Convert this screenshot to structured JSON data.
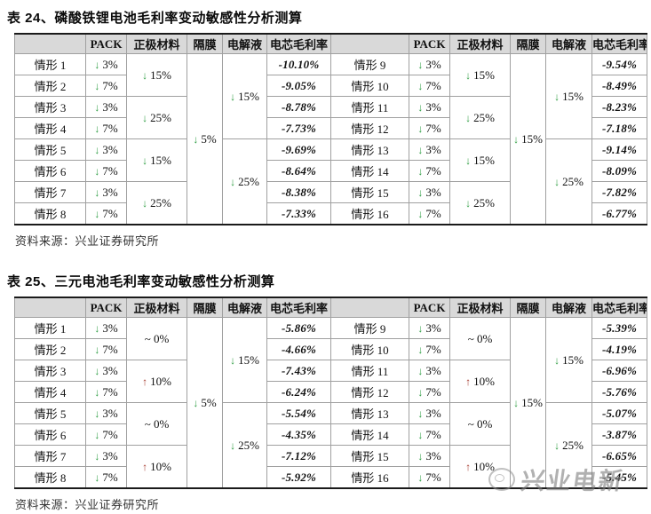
{
  "colors": {
    "arrow_down": "#2f9e44",
    "arrow_up": "#a63a2e",
    "header_bg": "#d9d9d9",
    "watermark": "#8c8c8c"
  },
  "watermark": {
    "text": "兴业电新"
  },
  "tables": [
    {
      "title": "表 24、磷酸铁锂电池毛利率变动敏感性分析测算",
      "source": "资料来源：兴业证券研究所",
      "columns": [
        "",
        "PACK",
        "正极材料",
        "隔膜",
        "电解液",
        "电芯毛利率"
      ],
      "halves": [
        {
          "rows": [
            {
              "label": "情形 1",
              "pack": {
                "dir": "down",
                "value": "3%"
              },
              "margin": "-10.10%"
            },
            {
              "label": "情形 2",
              "pack": {
                "dir": "down",
                "value": "7%"
              },
              "margin": "-9.05%"
            },
            {
              "label": "情形 3",
              "pack": {
                "dir": "down",
                "value": "3%"
              },
              "margin": "-8.78%"
            },
            {
              "label": "情形 4",
              "pack": {
                "dir": "down",
                "value": "7%"
              },
              "margin": "-7.73%"
            },
            {
              "label": "情形 5",
              "pack": {
                "dir": "down",
                "value": "3%"
              },
              "margin": "-9.69%"
            },
            {
              "label": "情形 6",
              "pack": {
                "dir": "down",
                "value": "7%"
              },
              "margin": "-8.64%"
            },
            {
              "label": "情形 7",
              "pack": {
                "dir": "down",
                "value": "3%"
              },
              "margin": "-8.38%"
            },
            {
              "label": "情形 8",
              "pack": {
                "dir": "down",
                "value": "7%"
              },
              "margin": "-7.33%"
            }
          ],
          "cathode": [
            {
              "dir": "down",
              "value": "15%",
              "span": 2
            },
            {
              "dir": "down",
              "value": "25%",
              "span": 2
            },
            {
              "dir": "down",
              "value": "15%",
              "span": 2
            },
            {
              "dir": "down",
              "value": "25%",
              "span": 2
            }
          ],
          "membrane": [
            {
              "dir": "down",
              "value": "5%",
              "span": 8
            }
          ],
          "electrolyte": [
            {
              "dir": "down",
              "value": "15%",
              "span": 4
            },
            {
              "dir": "down",
              "value": "25%",
              "span": 4
            }
          ]
        },
        {
          "rows": [
            {
              "label": "情形 9",
              "pack": {
                "dir": "down",
                "value": "3%"
              },
              "margin": "-9.54%"
            },
            {
              "label": "情形 10",
              "pack": {
                "dir": "down",
                "value": "7%"
              },
              "margin": "-8.49%"
            },
            {
              "label": "情形 11",
              "pack": {
                "dir": "down",
                "value": "3%"
              },
              "margin": "-8.23%"
            },
            {
              "label": "情形 12",
              "pack": {
                "dir": "down",
                "value": "7%"
              },
              "margin": "-7.18%"
            },
            {
              "label": "情形 13",
              "pack": {
                "dir": "down",
                "value": "3%"
              },
              "margin": "-9.14%"
            },
            {
              "label": "情形 14",
              "pack": {
                "dir": "down",
                "value": "7%"
              },
              "margin": "-8.09%"
            },
            {
              "label": "情形 15",
              "pack": {
                "dir": "down",
                "value": "3%"
              },
              "margin": "-7.82%"
            },
            {
              "label": "情形 16",
              "pack": {
                "dir": "down",
                "value": "7%"
              },
              "margin": "-6.77%"
            }
          ],
          "cathode": [
            {
              "dir": "down",
              "value": "15%",
              "span": 2
            },
            {
              "dir": "down",
              "value": "25%",
              "span": 2
            },
            {
              "dir": "down",
              "value": "15%",
              "span": 2
            },
            {
              "dir": "down",
              "value": "25%",
              "span": 2
            }
          ],
          "membrane": [
            {
              "dir": "down",
              "value": "15%",
              "span": 8
            }
          ],
          "electrolyte": [
            {
              "dir": "down",
              "value": "15%",
              "span": 4
            },
            {
              "dir": "down",
              "value": "25%",
              "span": 4
            }
          ]
        }
      ]
    },
    {
      "title": "表 25、三元电池毛利率变动敏感性分析测算",
      "source": "资料来源：兴业证券研究所",
      "columns": [
        "",
        "PACK",
        "正极材料",
        "隔膜",
        "电解液",
        "电芯毛利率"
      ],
      "halves": [
        {
          "rows": [
            {
              "label": "情形 1",
              "pack": {
                "dir": "down",
                "value": "3%"
              },
              "margin": "-5.86%"
            },
            {
              "label": "情形 2",
              "pack": {
                "dir": "down",
                "value": "7%"
              },
              "margin": "-4.66%"
            },
            {
              "label": "情形 3",
              "pack": {
                "dir": "down",
                "value": "3%"
              },
              "margin": "-7.43%"
            },
            {
              "label": "情形 4",
              "pack": {
                "dir": "down",
                "value": "7%"
              },
              "margin": "-6.24%"
            },
            {
              "label": "情形 5",
              "pack": {
                "dir": "down",
                "value": "3%"
              },
              "margin": "-5.54%"
            },
            {
              "label": "情形 6",
              "pack": {
                "dir": "down",
                "value": "7%"
              },
              "margin": "-4.35%"
            },
            {
              "label": "情形 7",
              "pack": {
                "dir": "down",
                "value": "3%"
              },
              "margin": "-7.12%"
            },
            {
              "label": "情形 8",
              "pack": {
                "dir": "down",
                "value": "7%"
              },
              "margin": "-5.92%"
            }
          ],
          "cathode": [
            {
              "dir": "none",
              "value": "~ 0%",
              "span": 2
            },
            {
              "dir": "up",
              "value": "10%",
              "span": 2
            },
            {
              "dir": "none",
              "value": "~ 0%",
              "span": 2
            },
            {
              "dir": "up",
              "value": "10%",
              "span": 2
            }
          ],
          "membrane": [
            {
              "dir": "down",
              "value": "5%",
              "span": 8
            }
          ],
          "electrolyte": [
            {
              "dir": "down",
              "value": "15%",
              "span": 4
            },
            {
              "dir": "down",
              "value": "25%",
              "span": 4
            }
          ]
        },
        {
          "rows": [
            {
              "label": "情形 9",
              "pack": {
                "dir": "down",
                "value": "3%"
              },
              "margin": "-5.39%"
            },
            {
              "label": "情形 10",
              "pack": {
                "dir": "down",
                "value": "7%"
              },
              "margin": "-4.19%"
            },
            {
              "label": "情形 11",
              "pack": {
                "dir": "down",
                "value": "3%"
              },
              "margin": "-6.96%"
            },
            {
              "label": "情形 12",
              "pack": {
                "dir": "down",
                "value": "7%"
              },
              "margin": "-5.76%"
            },
            {
              "label": "情形 13",
              "pack": {
                "dir": "down",
                "value": "3%"
              },
              "margin": "-5.07%"
            },
            {
              "label": "情形 14",
              "pack": {
                "dir": "down",
                "value": "7%"
              },
              "margin": "-3.87%"
            },
            {
              "label": "情形 15",
              "pack": {
                "dir": "down",
                "value": "3%"
              },
              "margin": "-6.65%"
            },
            {
              "label": "情形 16",
              "pack": {
                "dir": "down",
                "value": "7%"
              },
              "margin": "-5.45%"
            }
          ],
          "cathode": [
            {
              "dir": "none",
              "value": "~ 0%",
              "span": 2
            },
            {
              "dir": "up",
              "value": "10%",
              "span": 2
            },
            {
              "dir": "none",
              "value": "~ 0%",
              "span": 2
            },
            {
              "dir": "up",
              "value": "10%",
              "span": 2
            }
          ],
          "membrane": [
            {
              "dir": "down",
              "value": "15%",
              "span": 8
            }
          ],
          "electrolyte": [
            {
              "dir": "down",
              "value": "15%",
              "span": 4
            },
            {
              "dir": "down",
              "value": "25%",
              "span": 4
            }
          ]
        }
      ]
    }
  ]
}
